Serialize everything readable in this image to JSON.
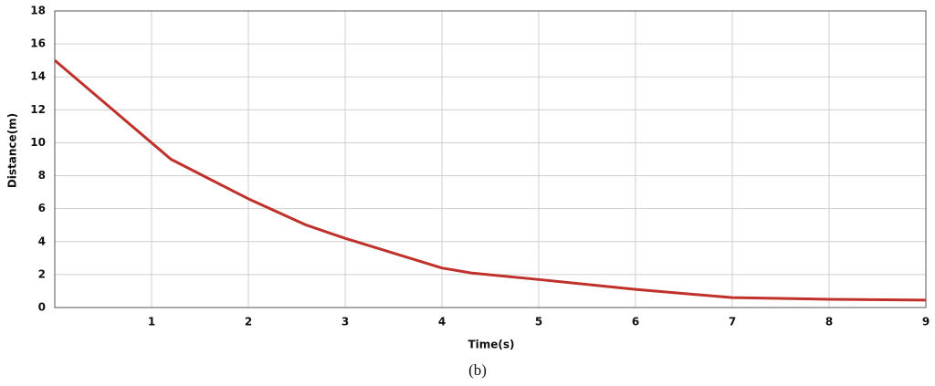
{
  "chart_data": {
    "type": "line",
    "xlabel": "Time(s)",
    "ylabel": "Distance(m)",
    "caption": "(b)",
    "x": [
      0,
      1,
      1.2,
      2,
      2.6,
      3,
      4,
      4.3,
      5,
      6,
      7,
      8,
      9
    ],
    "series": [
      {
        "color": "#c0312b",
        "values": [
          15,
          10,
          9,
          6.6,
          5,
          4.2,
          2.4,
          2.1,
          1.7,
          1.1,
          0.6,
          0.5,
          0.45
        ]
      }
    ],
    "xlim": [
      0,
      9
    ],
    "xticks": [
      1,
      2,
      3,
      4,
      5,
      6,
      7,
      8,
      9
    ],
    "ylim": [
      0,
      18
    ],
    "yticks": [
      0,
      2,
      4,
      6,
      8,
      10,
      12,
      14,
      16,
      18
    ],
    "grid": true
  }
}
